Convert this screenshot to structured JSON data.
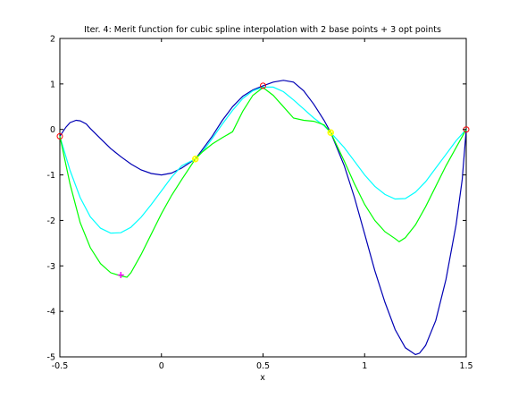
{
  "chart_data": {
    "type": "line",
    "title": "Iter. 4: Merit function for cubic spline interpolation with 2 base points + 3 opt points",
    "xlabel": "x",
    "ylabel": "",
    "xlim": [
      -0.5,
      1.5
    ],
    "ylim": [
      -5,
      2
    ],
    "grid": false,
    "legend": "none",
    "xticks": {
      "values": [
        -0.5,
        0,
        0.5,
        1,
        1.5
      ],
      "labels": [
        "-0.5",
        "0",
        "0.5",
        "1",
        "1.5"
      ]
    },
    "yticks": {
      "values": [
        -5,
        -4,
        -3,
        -2,
        -1,
        0,
        1,
        2
      ],
      "labels": [
        "-5",
        "-4",
        "-3",
        "-2",
        "-1",
        "0",
        "1",
        "2"
      ]
    },
    "series": [
      {
        "color": "#0000b4",
        "x": [
          -0.5,
          -0.47,
          -0.45,
          -0.42,
          -0.4,
          -0.37,
          -0.35,
          -0.3,
          -0.25,
          -0.2,
          -0.15,
          -0.1,
          -0.05,
          0,
          0.05,
          0.1,
          0.15,
          0.167,
          0.2,
          0.25,
          0.3,
          0.35,
          0.4,
          0.45,
          0.5,
          0.55,
          0.6,
          0.65,
          0.7,
          0.75,
          0.8,
          0.833,
          0.9,
          0.95,
          1.0,
          1.05,
          1.1,
          1.15,
          1.2,
          1.25,
          1.27,
          1.3,
          1.35,
          1.4,
          1.45,
          1.48,
          1.5
        ],
        "y": [
          -0.15,
          0.05,
          0.15,
          0.2,
          0.19,
          0.12,
          0.02,
          -0.2,
          -0.42,
          -0.6,
          -0.76,
          -0.89,
          -0.97,
          -1.0,
          -0.96,
          -0.85,
          -0.7,
          -0.65,
          -0.45,
          -0.15,
          0.2,
          0.5,
          0.73,
          0.87,
          0.96,
          1.04,
          1.08,
          1.04,
          0.85,
          0.55,
          0.2,
          -0.07,
          -0.8,
          -1.5,
          -2.3,
          -3.1,
          -3.8,
          -4.4,
          -4.8,
          -4.95,
          -4.92,
          -4.75,
          -4.2,
          -3.3,
          -2.1,
          -1.1,
          0.0
        ]
      },
      {
        "color": "#00ffff",
        "x": [
          -0.5,
          -0.45,
          -0.4,
          -0.35,
          -0.3,
          -0.25,
          -0.2,
          -0.15,
          -0.1,
          -0.05,
          0,
          0.05,
          0.1,
          0.167,
          0.2,
          0.25,
          0.3,
          0.35,
          0.4,
          0.45,
          0.5,
          0.55,
          0.6,
          0.65,
          0.7,
          0.75,
          0.8,
          0.833,
          0.9,
          0.95,
          1.0,
          1.05,
          1.1,
          1.15,
          1.2,
          1.25,
          1.3,
          1.35,
          1.4,
          1.45,
          1.5
        ],
        "y": [
          -0.15,
          -0.9,
          -1.5,
          -1.92,
          -2.17,
          -2.28,
          -2.27,
          -2.15,
          -1.93,
          -1.65,
          -1.35,
          -1.05,
          -0.8,
          -0.65,
          -0.5,
          -0.2,
          0.12,
          0.42,
          0.68,
          0.85,
          0.93,
          0.93,
          0.83,
          0.65,
          0.45,
          0.25,
          0.08,
          -0.07,
          -0.4,
          -0.7,
          -1.0,
          -1.25,
          -1.43,
          -1.53,
          -1.52,
          -1.38,
          -1.15,
          -0.85,
          -0.55,
          -0.25,
          0.0
        ]
      },
      {
        "color": "#00ff00",
        "x": [
          -0.5,
          -0.45,
          -0.4,
          -0.35,
          -0.3,
          -0.25,
          -0.2,
          -0.17,
          -0.15,
          -0.1,
          -0.05,
          0,
          0.05,
          0.1,
          0.167,
          0.2,
          0.25,
          0.3,
          0.35,
          0.4,
          0.45,
          0.5,
          0.55,
          0.6,
          0.65,
          0.7,
          0.75,
          0.8,
          0.833,
          0.9,
          0.95,
          1.0,
          1.05,
          1.1,
          1.15,
          1.17,
          1.2,
          1.25,
          1.3,
          1.35,
          1.4,
          1.45,
          1.5
        ],
        "y": [
          -0.15,
          -1.2,
          -2.05,
          -2.6,
          -2.95,
          -3.15,
          -3.22,
          -3.25,
          -3.15,
          -2.75,
          -2.3,
          -1.85,
          -1.45,
          -1.1,
          -0.65,
          -0.5,
          -0.32,
          -0.18,
          -0.05,
          0.4,
          0.75,
          0.92,
          0.75,
          0.5,
          0.25,
          0.2,
          0.18,
          0.1,
          -0.07,
          -0.7,
          -1.2,
          -1.65,
          -2.0,
          -2.25,
          -2.4,
          -2.47,
          -2.38,
          -2.1,
          -1.7,
          -1.25,
          -0.8,
          -0.4,
          0.0
        ]
      }
    ],
    "points": {
      "red_circles": {
        "color": "#ff0000",
        "x": [
          -0.5,
          0.5,
          1.5
        ],
        "y": [
          -0.15,
          0.96,
          0.0
        ]
      },
      "yellow_circles": {
        "color": "#ffff00",
        "x": [
          0.167,
          0.833
        ],
        "y": [
          -0.65,
          -0.07
        ]
      },
      "magenta_plus": {
        "color": "#ff00ff",
        "x": [
          -0.2
        ],
        "y": [
          -3.2
        ]
      }
    }
  }
}
